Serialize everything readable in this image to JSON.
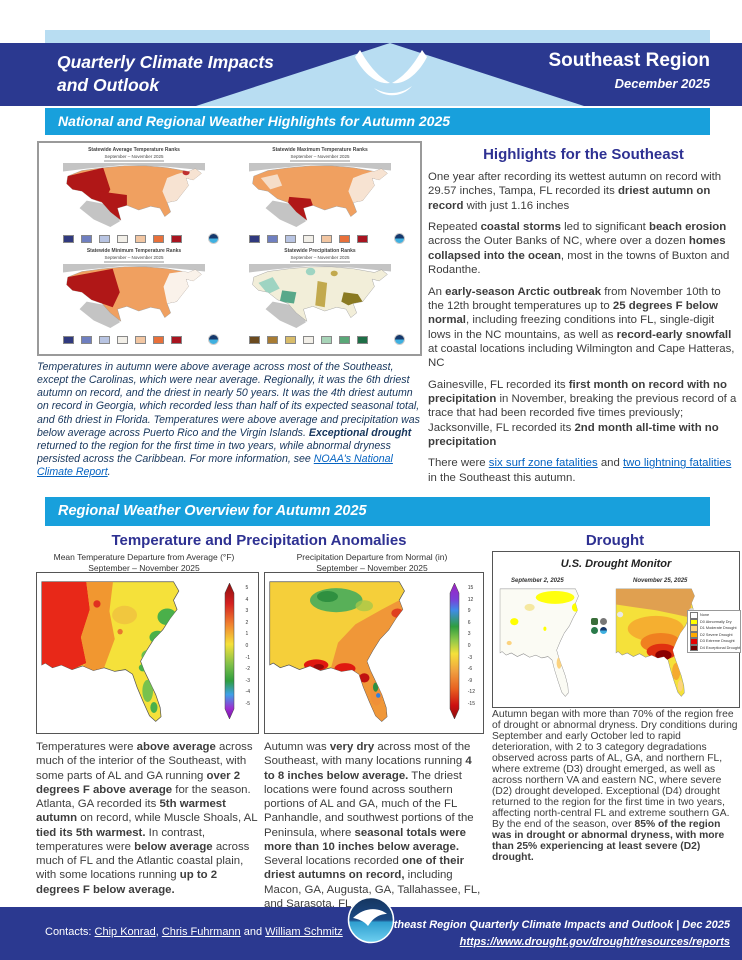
{
  "palette": {
    "navy": "#2b3990",
    "cyan": "#18a0dc",
    "light_blue": "#b8ddf2",
    "heading": "#2e3192",
    "link": "#0563c1",
    "usdm": {
      "none": "#ffffff",
      "d0": "#ffff00",
      "d1": "#fcd37f",
      "d2": "#ffaa00",
      "d3": "#e60000",
      "d4": "#730000"
    }
  },
  "header": {
    "title_line1": "Quarterly Climate Impacts",
    "title_line2": "and Outlook",
    "region": "Southeast Region",
    "date": "December 2025"
  },
  "banner_national": "National and Regional Weather Highlights for Autumn 2025",
  "banner_regional": "Regional Weather Overview for Autumn 2025",
  "national_maps": {
    "maps": [
      {
        "title": "Statewide Average Temperature Ranks",
        "subtitle": "September – November 2025"
      },
      {
        "title": "Statewide Maximum Temperature Ranks",
        "subtitle": "September – November 2025"
      },
      {
        "title": "Statewide Minimum Temperature Ranks",
        "subtitle": "September – November 2025"
      },
      {
        "title": "Statewide Precipitation Ranks",
        "subtitle": "September – November 2025"
      }
    ]
  },
  "caption_segments": [
    {
      "t": "Temperatures in autumn were above average across most of the Southeast, except the Carolinas, which were near average. Regionally, it was the 6th driest autumn on record, and the driest in nearly 50 years. It was the 4th driest autumn on record in Georgia, which recorded less than half of its expected seasonal total, and 6th driest in Florida. Temperatures were above average and precipitation was below average across Puerto Rico and the Virgin Islands. "
    },
    {
      "t": "Exceptional drought",
      "s": "b"
    },
    {
      "t": " returned to the region for the first time in two years, while abnormal dryness persisted across the Caribbean. For more information, see "
    },
    {
      "t": "NOAA's National Climate Report",
      "s": "l"
    },
    {
      "t": "."
    }
  ],
  "highlights": {
    "title": "Highlights for the Southeast",
    "paragraphs": [
      [
        {
          "t": "One year after recording its wettest autumn on record with 29.57 inches, Tampa, FL recorded its "
        },
        {
          "t": "driest autumn on record",
          "s": "b"
        },
        {
          "t": " with just 1.16 inches"
        }
      ],
      [
        {
          "t": "Repeated "
        },
        {
          "t": "coastal storms",
          "s": "b"
        },
        {
          "t": " led to significant "
        },
        {
          "t": "beach erosion",
          "s": "b"
        },
        {
          "t": " across the Outer Banks of NC, where over a dozen "
        },
        {
          "t": "homes collapsed into the ocean",
          "s": "b"
        },
        {
          "t": ", most in the towns of Buxton and Rodanthe."
        }
      ],
      [
        {
          "t": "An "
        },
        {
          "t": "early-season Arctic outbreak",
          "s": "b"
        },
        {
          "t": " from November 10th to the 12th brought temperatures up to "
        },
        {
          "t": "25 degrees F below normal",
          "s": "b"
        },
        {
          "t": ", including freezing conditions into FL, single-digit lows in the NC mountains, as well as "
        },
        {
          "t": "record-early snowfall",
          "s": "b"
        },
        {
          "t": " at coastal locations including Wilmington and Cape Hatteras, NC"
        }
      ],
      [
        {
          "t": "Gainesville, FL recorded its "
        },
        {
          "t": "first month on record with no precipitation",
          "s": "b"
        },
        {
          "t": " in November, breaking the previous record of a trace that had been recorded five times previously; Jacksonville, FL recorded its "
        },
        {
          "t": "2nd month all-time with no precipitation",
          "s": "b"
        }
      ],
      [
        {
          "t": "There were "
        },
        {
          "t": "six surf zone fatalities",
          "s": "l"
        },
        {
          "t": " and "
        },
        {
          "t": "two lightning fatalities",
          "s": "l"
        },
        {
          "t": " in the Southeast this autumn."
        }
      ]
    ]
  },
  "overview": {
    "anomalies_title": "Temperature and Precipitation Anomalies",
    "drought_title": "Drought",
    "temp_map": {
      "title": "Mean Temperature Departure from Average (°F)",
      "subtitle": "September – November 2025",
      "scale_labels": [
        "5",
        "4",
        "3",
        "2",
        "1",
        "0",
        "-1",
        "-2",
        "-3",
        "-4",
        "-5"
      ]
    },
    "precip_map": {
      "title": "Precipitation Departure from Normal (in)",
      "subtitle": "September – November 2025",
      "scale_labels": [
        "15",
        "12",
        "9",
        "6",
        "3",
        "0",
        "-3",
        "-6",
        "-9",
        "-12",
        "-15"
      ]
    },
    "temp_text": [
      {
        "t": "Temperatures were "
      },
      {
        "t": "above average",
        "s": "b"
      },
      {
        "t": " across much of the interior of the Southeast, with some parts of AL and GA running "
      },
      {
        "t": "over 2 degrees F above average",
        "s": "b"
      },
      {
        "t": " for the season. Atlanta, GA recorded its "
      },
      {
        "t": "5th warmest autumn",
        "s": "b"
      },
      {
        "t": " on record, while Muscle Shoals, AL "
      },
      {
        "t": "tied its 5th warmest.",
        "s": "b"
      },
      {
        "t": " In contrast, temperatures were "
      },
      {
        "t": "below average",
        "s": "b"
      },
      {
        "t": " across much of FL and the Atlantic coastal plain, with some locations running "
      },
      {
        "t": "up to 2 degrees F below average.",
        "s": "b"
      }
    ],
    "precip_text": [
      {
        "t": "Autumn was "
      },
      {
        "t": "very dry",
        "s": "b"
      },
      {
        "t": " across most of the Southeast, with many locations running "
      },
      {
        "t": "4 to 8 inches below average.",
        "s": "b"
      },
      {
        "t": " The driest locations were found across southern portions of AL and GA, much of the FL Panhandle, and southwest portions of the Peninsula, where "
      },
      {
        "t": "seasonal totals were more than 10 inches below average.",
        "s": "b"
      },
      {
        "t": " Several locations recorded "
      },
      {
        "t": "one of their driest autumns on record,",
        "s": "b"
      },
      {
        "t": " including Macon, GA, Augusta, GA, Tallahassee, FL, and Sarasota, FL."
      }
    ],
    "drought_text": [
      {
        "t": "Autumn began with more than 70% of the region free of drought or abnormal dryness. Dry conditions during September and early October led to rapid deterioration, with 2 to 3 category degradations observed across parts of AL, GA, and northern FL, where extreme (D3) drought emerged, as well as across northern VA and eastern NC, where severe (D2) drought developed. Exceptional (D4) drought returned to the region for the first time in two years, affecting north-central FL and extreme southern GA. By the end of the season, over "
      },
      {
        "t": "85% of the region was in drought or abnormal dryness, with more than 25% experiencing at least severe (D2) drought.",
        "s": "b"
      }
    ]
  },
  "drought_monitor": {
    "title": "U.S. Drought Monitor",
    "date_left": "September 2, 2025",
    "date_right": "November 25, 2025",
    "legend": [
      "None",
      "D0 Abnormally Dry",
      "D1 Moderate Drought",
      "D2 Severe Drought",
      "D3 Extreme Drought",
      "D4 Exceptional Drought"
    ]
  },
  "footer": {
    "contacts_segments": [
      {
        "t": "Contacts:  "
      },
      {
        "t": "Chip Konrad",
        "s": "l"
      },
      {
        "t": ", "
      },
      {
        "t": "Chris Fuhrmann",
        "s": "l"
      },
      {
        "t": " and "
      },
      {
        "t": "William Schmitz",
        "s": "l"
      }
    ],
    "right_line1": "Southeast Region Quarterly Climate Impacts and Outlook | Dec 2025",
    "right_line2": "https://www.drought.gov/drought/resources/reports"
  }
}
